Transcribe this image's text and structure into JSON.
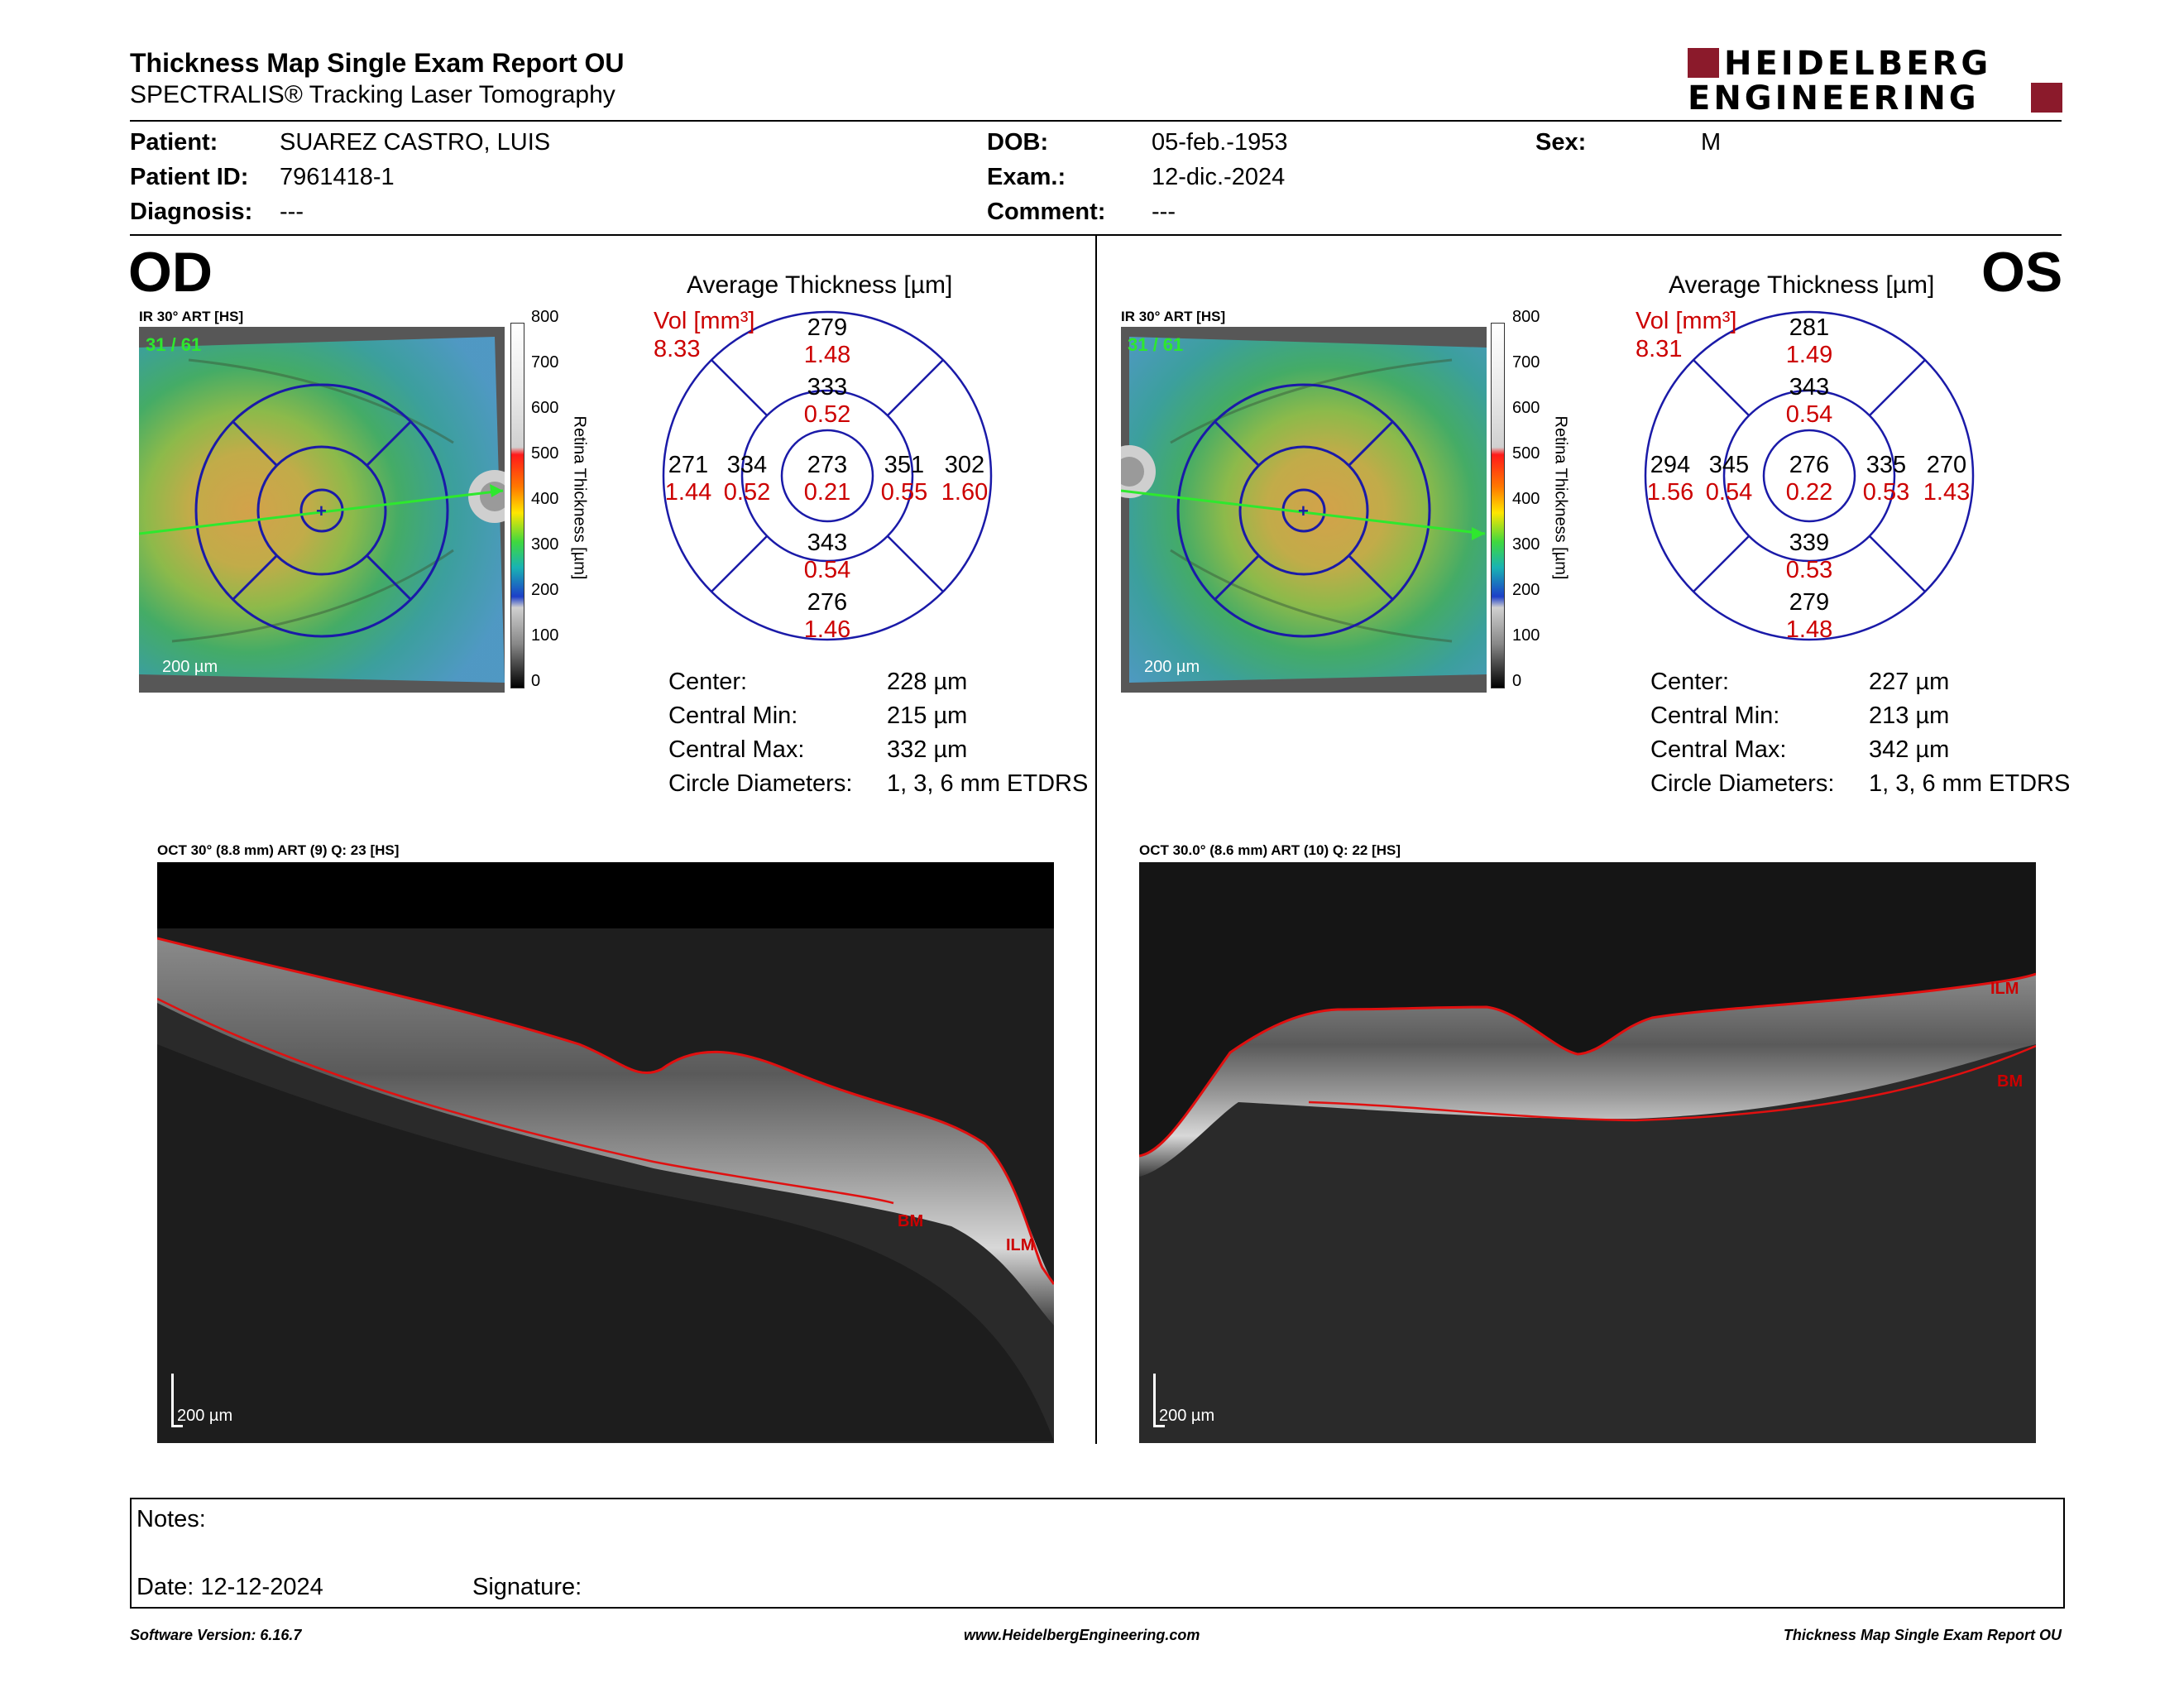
{
  "header": {
    "title": "Thickness Map Single Exam Report OU",
    "subtitle": "SPECTRALIS® Tracking Laser Tomography",
    "logo": {
      "line1": "HEIDELBERG",
      "line2": "ENGINEERING",
      "accent": "#8b1a2b"
    }
  },
  "patient": {
    "patient_label": "Patient:",
    "patient_value": "SUAREZ CASTRO, LUIS",
    "id_label": "Patient ID:",
    "id_value": "7961418-1",
    "diag_label": "Diagnosis:",
    "diag_value": "---",
    "dob_label": "DOB:",
    "dob_value": "05-feb.-1953",
    "exam_label": "Exam.:",
    "exam_value": "12-dic.-2024",
    "comment_label": "Comment:",
    "comment_value": "---",
    "sex_label": "Sex:",
    "sex_value": "M"
  },
  "od": {
    "eye_label": "OD",
    "ir_title": "IR 30° ART [HS]",
    "frame": "31 / 61",
    "scale": "200 µm",
    "avg_title": "Average Thickness [µm]",
    "vol_label": "Vol [mm³]",
    "vol_value": "8.33",
    "sectors": {
      "superior_outer": {
        "t": "279",
        "v": "1.48"
      },
      "superior_inner": {
        "t": "333",
        "v": "0.52"
      },
      "center": {
        "t": "273",
        "v": "0.21"
      },
      "inferior_inner": {
        "t": "343",
        "v": "0.54"
      },
      "inferior_outer": {
        "t": "276",
        "v": "1.46"
      },
      "left_outer": {
        "t": "271",
        "v": "1.44"
      },
      "left_inner": {
        "t": "334",
        "v": "0.52"
      },
      "right_inner": {
        "t": "351",
        "v": "0.55"
      },
      "right_outer": {
        "t": "302",
        "v": "1.60"
      }
    },
    "stats": [
      {
        "label": "Center:",
        "value": "228 µm"
      },
      {
        "label": "Central Min:",
        "value": "215 µm"
      },
      {
        "label": "Central Max:",
        "value": "332 µm"
      },
      {
        "label": "Circle Diameters:",
        "value": "1, 3, 6 mm ETDRS"
      }
    ],
    "oct_title": "OCT 30° (8.8 mm) ART (9) Q: 23 [HS]",
    "oct_scale": "200 µm",
    "ilm": "ILM",
    "bm": "BM"
  },
  "os": {
    "eye_label": "OS",
    "ir_title": "IR 30° ART [HS]",
    "frame": "31 / 61",
    "scale": "200 µm",
    "avg_title": "Average Thickness [µm]",
    "vol_label": "Vol [mm³]",
    "vol_value": "8.31",
    "sectors": {
      "superior_outer": {
        "t": "281",
        "v": "1.49"
      },
      "superior_inner": {
        "t": "343",
        "v": "0.54"
      },
      "center": {
        "t": "276",
        "v": "0.22"
      },
      "inferior_inner": {
        "t": "339",
        "v": "0.53"
      },
      "inferior_outer": {
        "t": "279",
        "v": "1.48"
      },
      "left_outer": {
        "t": "294",
        "v": "1.56"
      },
      "left_inner": {
        "t": "345",
        "v": "0.54"
      },
      "right_inner": {
        "t": "335",
        "v": "0.53"
      },
      "right_outer": {
        "t": "270",
        "v": "1.43"
      }
    },
    "stats": [
      {
        "label": "Center:",
        "value": "227 µm"
      },
      {
        "label": "Central Min:",
        "value": "213 µm"
      },
      {
        "label": "Central Max:",
        "value": "342 µm"
      },
      {
        "label": "Circle Diameters:",
        "value": "1, 3, 6 mm ETDRS"
      }
    ],
    "oct_title": "OCT 30.0° (8.6 mm) ART (10) Q: 22 [HS]",
    "oct_scale": "200 µm",
    "ilm": "ILM",
    "bm": "BM"
  },
  "colorbar": {
    "ticks": [
      "800",
      "700",
      "600",
      "500",
      "400",
      "300",
      "200",
      "100",
      "0"
    ],
    "label": "Retina Thickness [µm]"
  },
  "notes": {
    "notes_label": "Notes:",
    "date_label": "Date: 12-12-2024",
    "signature_label": "Signature:"
  },
  "footer": {
    "left": "Software Version: 6.16.7",
    "center": "www.HeidelbergEngineering.com",
    "right": "Thickness Map Single Exam Report OU"
  },
  "colors": {
    "ring": "#1a1aa8",
    "red_text": "#cc0000",
    "layer_line": "#e01010",
    "frame_green": "#2ee82e"
  }
}
